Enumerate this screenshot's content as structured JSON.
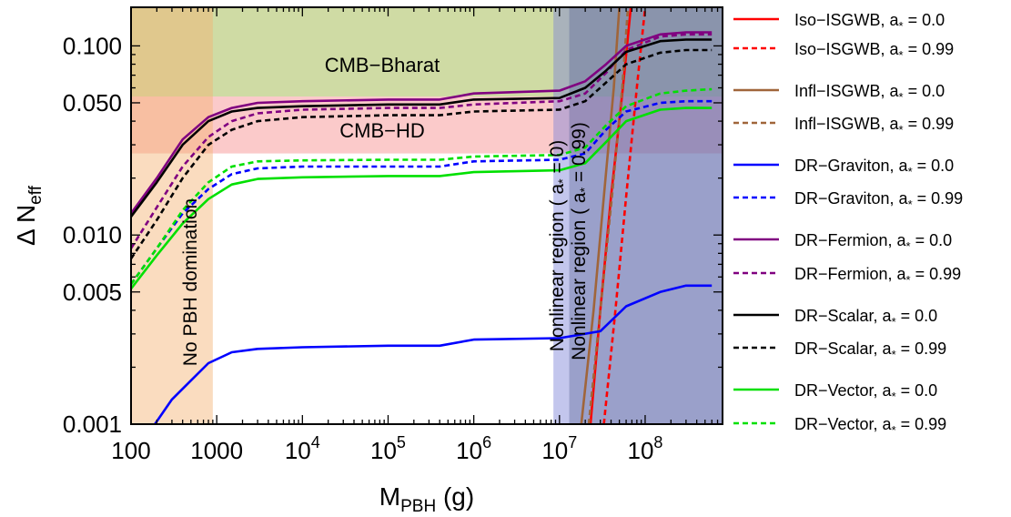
{
  "chart_data": {
    "type": "line",
    "xlabel": "M",
    "xlabel_sub": "PBH",
    "xlabel_unit": " (g)",
    "ylabel": "Δ N",
    "ylabel_sub": "eff",
    "x_scale": "log",
    "y_scale": "log",
    "xlim": [
      100,
      800000000
    ],
    "ylim": [
      0.001,
      0.16
    ],
    "x_ticks": [
      {
        "value": 100,
        "base": "100",
        "exp": ""
      },
      {
        "value": 1000,
        "base": "1000",
        "exp": ""
      },
      {
        "value": 10000,
        "base": "10",
        "exp": "4"
      },
      {
        "value": 100000,
        "base": "10",
        "exp": "5"
      },
      {
        "value": 1000000,
        "base": "10",
        "exp": "6"
      },
      {
        "value": 10000000,
        "base": "10",
        "exp": "7"
      },
      {
        "value": 100000000,
        "base": "10",
        "exp": "8"
      }
    ],
    "y_ticks": [
      {
        "value": 0.001,
        "label": "0.001"
      },
      {
        "value": 0.005,
        "label": "0.005"
      },
      {
        "value": 0.01,
        "label": "0.010"
      },
      {
        "value": 0.05,
        "label": "0.050"
      },
      {
        "value": 0.1,
        "label": "0.100"
      }
    ],
    "bands": [
      {
        "name": "CMB−Bharat",
        "orientation": "horizontal",
        "y_range": [
          0.054,
          0.16
        ],
        "color": "#9fb84a",
        "opacity": 0.5
      },
      {
        "name": "CMB−HD",
        "orientation": "horizontal",
        "y_range": [
          0.027,
          0.054
        ],
        "color": "#f47a7a",
        "opacity": 0.4
      },
      {
        "name": "No PBH domination",
        "orientation": "vertical",
        "x_range": [
          100,
          900
        ],
        "color": "#f5b270",
        "opacity": 0.45
      },
      {
        "name": "Nonlinear region ( a* = 0)",
        "orientation": "vertical",
        "x_range": [
          8500000,
          800000000
        ],
        "color": "#7b80d6",
        "opacity": 0.45
      },
      {
        "name": "Nonlinear region ( a* = 0.99)",
        "orientation": "vertical",
        "x_range": [
          13000000,
          800000000
        ],
        "color": "#5d6695",
        "opacity": 0.4
      }
    ],
    "band_labels": {
      "cmb_bharat": "CMB−Bharat",
      "cmb_hd": "CMB−HD",
      "no_pbh": "No PBH domination",
      "nonlinear_0": "Nonlinear region ( a",
      "nonlinear_0_sub": "*",
      "nonlinear_0_end": " = 0)",
      "nonlinear_99": "Nonlinear region ( a",
      "nonlinear_99_sub": "*",
      "nonlinear_99_end": " = 0.99)"
    },
    "series": [
      {
        "name": "Iso−ISGWB, a",
        "spin": " = 0.0",
        "color": "#ff0000",
        "dash": false,
        "points": [
          [
            23000000,
            0.001
          ],
          [
            30000000,
            0.004
          ],
          [
            40000000,
            0.016
          ],
          [
            55000000,
            0.06
          ],
          [
            68000000,
            0.16
          ]
        ]
      },
      {
        "name": "Iso−ISGWB, a",
        "spin": " = 0.99",
        "color": "#ff0000",
        "dash": true,
        "points": [
          [
            33000000,
            0.001
          ],
          [
            45000000,
            0.004
          ],
          [
            60000000,
            0.016
          ],
          [
            80000000,
            0.06
          ],
          [
            100000000,
            0.16
          ]
        ]
      },
      {
        "name": "Infl−ISGWB, a",
        "spin": " = 0.0",
        "color": "#a0653a",
        "dash": false,
        "points": [
          [
            18000000,
            0.001
          ],
          [
            25000000,
            0.004
          ],
          [
            33000000,
            0.016
          ],
          [
            43000000,
            0.06
          ],
          [
            50000000,
            0.16
          ]
        ]
      },
      {
        "name": "Infl−ISGWB, a",
        "spin": " = 0.99",
        "color": "#a0653a",
        "dash": true,
        "points": [
          [
            22000000,
            0.001
          ],
          [
            30000000,
            0.004
          ],
          [
            41000000,
            0.016
          ],
          [
            54000000,
            0.06
          ],
          [
            63000000,
            0.16
          ]
        ]
      },
      {
        "name": "DR−Graviton, a",
        "spin": " = 0.0",
        "color": "#0000ff",
        "dash": false,
        "points": [
          [
            190,
            0.001
          ],
          [
            300,
            0.00135
          ],
          [
            500,
            0.0017
          ],
          [
            800,
            0.0021
          ],
          [
            1500,
            0.0024
          ],
          [
            3000,
            0.0025
          ],
          [
            10000,
            0.00255
          ],
          [
            100000,
            0.0026
          ],
          [
            400000,
            0.0026
          ],
          [
            1000000,
            0.0028
          ],
          [
            10000000,
            0.00285
          ],
          [
            30000000,
            0.0031
          ],
          [
            60000000,
            0.0042
          ],
          [
            150000000,
            0.005
          ],
          [
            300000000,
            0.0054
          ],
          [
            600000000,
            0.0054
          ]
        ]
      },
      {
        "name": "DR−Graviton, a",
        "spin": " = 0.99",
        "color": "#0000ff",
        "dash": true,
        "points": [
          [
            100,
            0.0055
          ],
          [
            200,
            0.0085
          ],
          [
            400,
            0.013
          ],
          [
            800,
            0.0175
          ],
          [
            1500,
            0.021
          ],
          [
            3000,
            0.0225
          ],
          [
            10000,
            0.023
          ],
          [
            100000,
            0.023
          ],
          [
            400000,
            0.023
          ],
          [
            1000000,
            0.0245
          ],
          [
            10000000,
            0.025
          ],
          [
            20000000,
            0.027
          ],
          [
            35000000,
            0.036
          ],
          [
            60000000,
            0.045
          ],
          [
            150000000,
            0.05
          ],
          [
            300000000,
            0.051
          ],
          [
            600000000,
            0.051
          ]
        ]
      },
      {
        "name": "DR−Fermion, a",
        "spin": " = 0.0",
        "color": "#800080",
        "dash": false,
        "points": [
          [
            100,
            0.013
          ],
          [
            200,
            0.02
          ],
          [
            400,
            0.032
          ],
          [
            800,
            0.042
          ],
          [
            1500,
            0.047
          ],
          [
            3000,
            0.05
          ],
          [
            10000,
            0.051
          ],
          [
            100000,
            0.052
          ],
          [
            400000,
            0.052
          ],
          [
            1000000,
            0.056
          ],
          [
            10000000,
            0.058
          ],
          [
            20000000,
            0.065
          ],
          [
            35000000,
            0.08
          ],
          [
            60000000,
            0.1
          ],
          [
            150000000,
            0.115
          ],
          [
            300000000,
            0.118
          ],
          [
            600000000,
            0.118
          ]
        ]
      },
      {
        "name": "DR−Fermion, a",
        "spin": " = 0.99",
        "color": "#800080",
        "dash": true,
        "points": [
          [
            100,
            0.0085
          ],
          [
            200,
            0.014
          ],
          [
            400,
            0.023
          ],
          [
            800,
            0.033
          ],
          [
            1500,
            0.04
          ],
          [
            3000,
            0.044
          ],
          [
            10000,
            0.046
          ],
          [
            100000,
            0.047
          ],
          [
            400000,
            0.047
          ],
          [
            1000000,
            0.049
          ],
          [
            10000000,
            0.051
          ],
          [
            20000000,
            0.056
          ],
          [
            35000000,
            0.072
          ],
          [
            60000000,
            0.095
          ],
          [
            150000000,
            0.112
          ],
          [
            300000000,
            0.115
          ],
          [
            600000000,
            0.115
          ]
        ]
      },
      {
        "name": "DR−Scalar, a",
        "spin": " = 0.0",
        "color": "#000000",
        "dash": false,
        "points": [
          [
            100,
            0.0125
          ],
          [
            200,
            0.019
          ],
          [
            400,
            0.03
          ],
          [
            800,
            0.04
          ],
          [
            1500,
            0.045
          ],
          [
            3000,
            0.047
          ],
          [
            10000,
            0.048
          ],
          [
            100000,
            0.049
          ],
          [
            400000,
            0.049
          ],
          [
            1000000,
            0.052
          ],
          [
            10000000,
            0.053
          ],
          [
            20000000,
            0.06
          ],
          [
            35000000,
            0.074
          ],
          [
            60000000,
            0.093
          ],
          [
            150000000,
            0.106
          ],
          [
            300000000,
            0.108
          ],
          [
            600000000,
            0.108
          ]
        ]
      },
      {
        "name": "DR−Scalar, a",
        "spin": " = 0.99",
        "color": "#000000",
        "dash": true,
        "points": [
          [
            100,
            0.0075
          ],
          [
            200,
            0.012
          ],
          [
            400,
            0.02
          ],
          [
            800,
            0.03
          ],
          [
            1500,
            0.036
          ],
          [
            3000,
            0.04
          ],
          [
            10000,
            0.042
          ],
          [
            100000,
            0.043
          ],
          [
            400000,
            0.043
          ],
          [
            1000000,
            0.045
          ],
          [
            10000000,
            0.046
          ],
          [
            20000000,
            0.051
          ],
          [
            35000000,
            0.064
          ],
          [
            60000000,
            0.08
          ],
          [
            150000000,
            0.092
          ],
          [
            300000000,
            0.095
          ],
          [
            600000000,
            0.095
          ]
        ]
      },
      {
        "name": "DR−Vector, a",
        "spin": " = 0.0",
        "color": "#00e000",
        "dash": false,
        "points": [
          [
            100,
            0.0052
          ],
          [
            200,
            0.0078
          ],
          [
            400,
            0.0115
          ],
          [
            800,
            0.0155
          ],
          [
            1500,
            0.0185
          ],
          [
            3000,
            0.0198
          ],
          [
            10000,
            0.0202
          ],
          [
            100000,
            0.0205
          ],
          [
            400000,
            0.0205
          ],
          [
            1000000,
            0.0215
          ],
          [
            10000000,
            0.022
          ],
          [
            20000000,
            0.024
          ],
          [
            35000000,
            0.031
          ],
          [
            60000000,
            0.04
          ],
          [
            150000000,
            0.046
          ],
          [
            300000000,
            0.047
          ],
          [
            600000000,
            0.047
          ]
        ]
      },
      {
        "name": "DR−Vector, a",
        "spin": " = 0.99",
        "color": "#00e000",
        "dash": true,
        "points": [
          [
            100,
            0.0055
          ],
          [
            200,
            0.0085
          ],
          [
            400,
            0.0135
          ],
          [
            800,
            0.019
          ],
          [
            1500,
            0.023
          ],
          [
            3000,
            0.0245
          ],
          [
            10000,
            0.0248
          ],
          [
            100000,
            0.025
          ],
          [
            400000,
            0.025
          ],
          [
            1000000,
            0.026
          ],
          [
            10000000,
            0.0265
          ],
          [
            20000000,
            0.029
          ],
          [
            35000000,
            0.038
          ],
          [
            60000000,
            0.048
          ],
          [
            150000000,
            0.056
          ],
          [
            300000000,
            0.058
          ],
          [
            600000000,
            0.059
          ]
        ]
      }
    ],
    "legend": {
      "placement": "right",
      "spin_symbol": "*"
    }
  }
}
